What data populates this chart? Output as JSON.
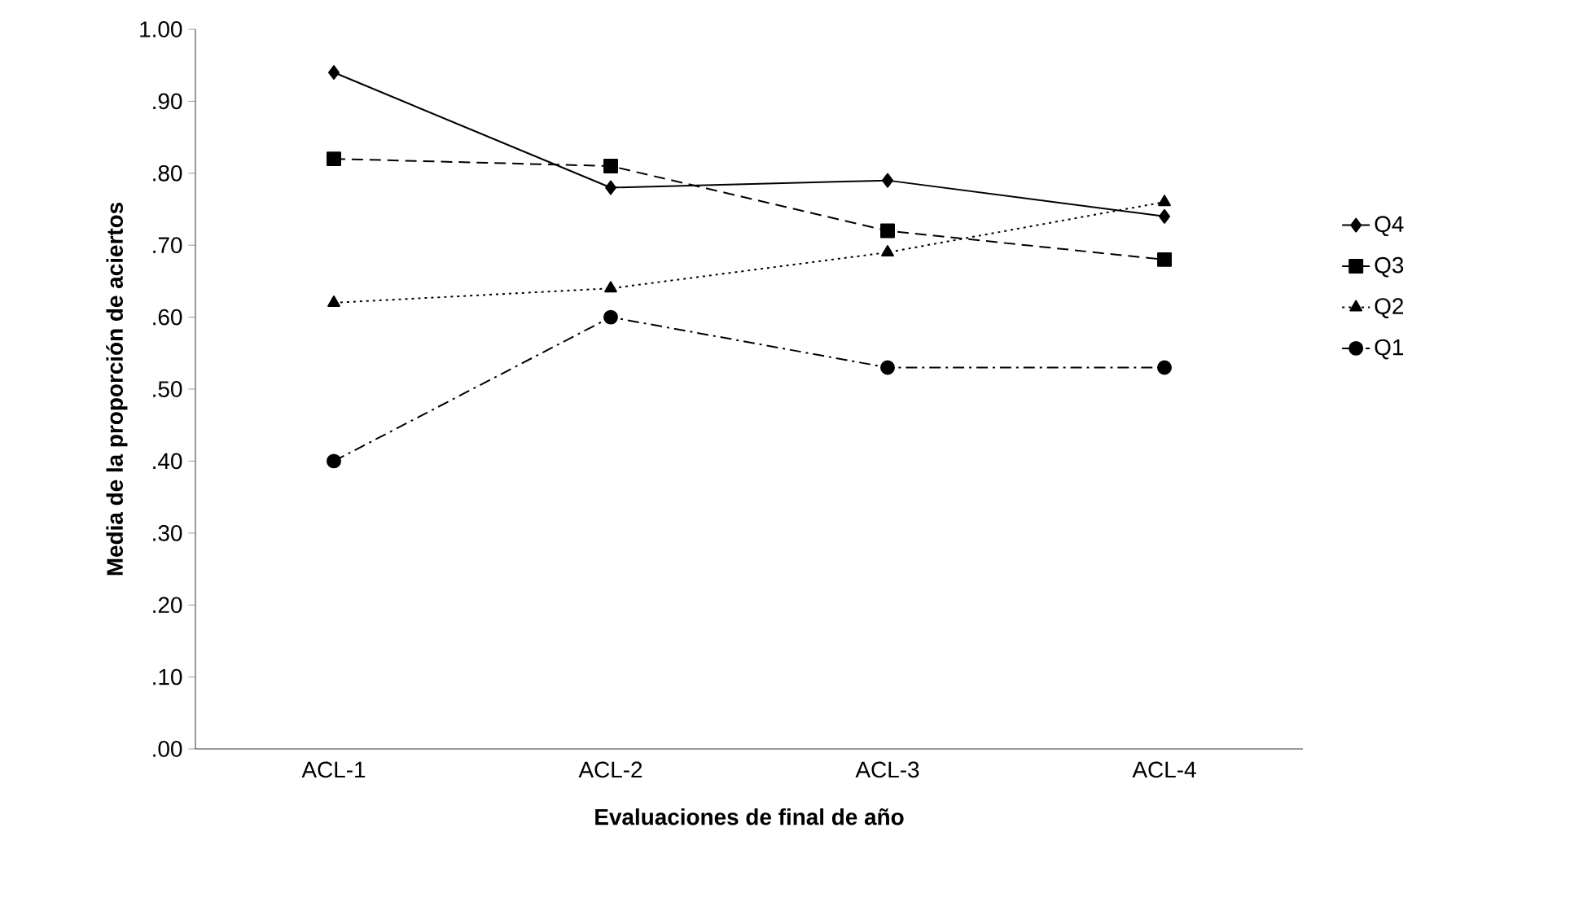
{
  "chart_data": {
    "type": "line",
    "xlabel": "Evaluaciones de final de año",
    "ylabel": "Media de la proporción de aciertos",
    "categories": [
      "ACL-1",
      "ACL-2",
      "ACL-3",
      "ACL-4"
    ],
    "series": [
      {
        "name": "Q4",
        "color": "#000000",
        "values": [
          0.94,
          0.78,
          0.79,
          0.74
        ],
        "marker": "diamond",
        "line_style": "solid"
      },
      {
        "name": "Q3",
        "color": "#000000",
        "values": [
          0.82,
          0.81,
          0.72,
          0.68
        ],
        "marker": "square",
        "line_style": "dashed"
      },
      {
        "name": "Q2",
        "color": "#000000",
        "values": [
          0.62,
          0.64,
          0.69,
          0.76
        ],
        "marker": "triangle",
        "line_style": "dotted"
      },
      {
        "name": "Q1",
        "color": "#000000",
        "values": [
          0.4,
          0.6,
          0.53,
          0.53
        ],
        "marker": "circle",
        "line_style": "dashdot"
      }
    ],
    "ylim": [
      0,
      1
    ],
    "yticks": [
      {
        "value": 0,
        "label": ".00"
      },
      {
        "value": 0.1,
        "label": ".10"
      },
      {
        "value": 0.2,
        "label": ".20"
      },
      {
        "value": 0.3,
        "label": ".30"
      },
      {
        "value": 0.4,
        "label": ".40"
      },
      {
        "value": 0.5,
        "label": ".50"
      },
      {
        "value": 0.6,
        "label": ".60"
      },
      {
        "value": 0.7,
        "label": ".70"
      },
      {
        "value": 0.8,
        "label": ".80"
      },
      {
        "value": 0.9,
        "label": ".90"
      },
      {
        "value": 1,
        "label": "1.00"
      }
    ],
    "grid": false,
    "legend": "right"
  }
}
